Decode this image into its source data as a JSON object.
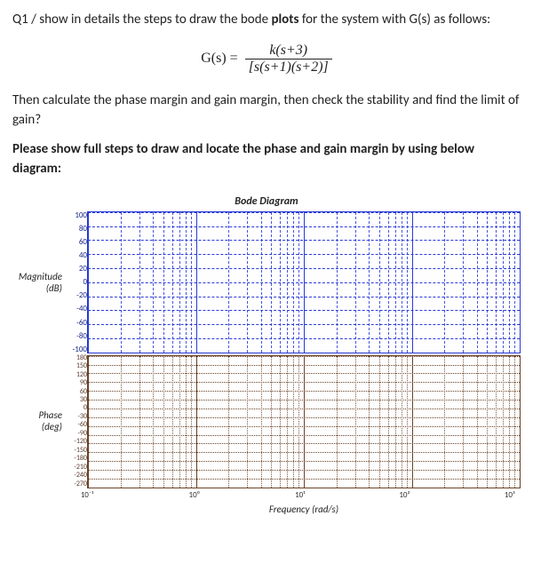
{
  "question": {
    "line1_pre": "Q1 / show in details the steps to draw the bode ",
    "line1_bold": "plots",
    "line1_post": " for the system with G(s) as follows:",
    "formula_lhs": "G(s) =",
    "formula_num": "k(s+3)",
    "formula_den": "[s(s+1)(s+2)]",
    "line2": "Then calculate the phase margin and gain margin, then check the stability and find the limit of gain?",
    "instruction": "Please show full steps to draw and locate the phase and gain margin by using below diagram:"
  },
  "bode": {
    "title": "Bode Diagram",
    "magnitude": {
      "ylabel_main": "Magnitude",
      "ylabel_sub": "(dB)",
      "ylim": [
        -100,
        100
      ],
      "ytick_step": 20,
      "yticks": [
        "100",
        "80",
        "60",
        "40",
        "20",
        "0",
        "-20",
        "-40",
        "-60",
        "-80",
        "-100"
      ],
      "line_color": "#2a3ad8",
      "grid_color": "#2a3ad8",
      "border_color": "#2236d0"
    },
    "phase": {
      "ylabel_main": "Phase",
      "ylabel_sub": "(deg)",
      "ylim": [
        -270,
        180
      ],
      "ytick_step": 30,
      "yticks": [
        "180",
        "150",
        "120",
        "90",
        "60",
        "30",
        "0",
        "-30",
        "-60",
        "-90",
        "-120",
        "-150",
        "-180",
        "-210",
        "-240",
        "-270"
      ],
      "line_color": "#6a4226",
      "grid_color": "#6a4226",
      "border_color": "#6a4226"
    },
    "xaxis": {
      "label": "Frequency (rad/s)",
      "decades": 4,
      "xlim": [
        0.1,
        1000
      ],
      "scale": "log",
      "tick_labels": [
        "10⁻¹",
        "10⁰",
        "10¹",
        "10²",
        "10³"
      ],
      "log_minor_positions_pct": [
        30.1,
        47.7,
        60.2,
        69.9,
        77.8,
        84.5,
        90.3,
        95.4
      ]
    },
    "background_color": "#fefefe",
    "title_fontsize": 12,
    "label_fontsize": 11,
    "tick_fontsize": 9
  }
}
